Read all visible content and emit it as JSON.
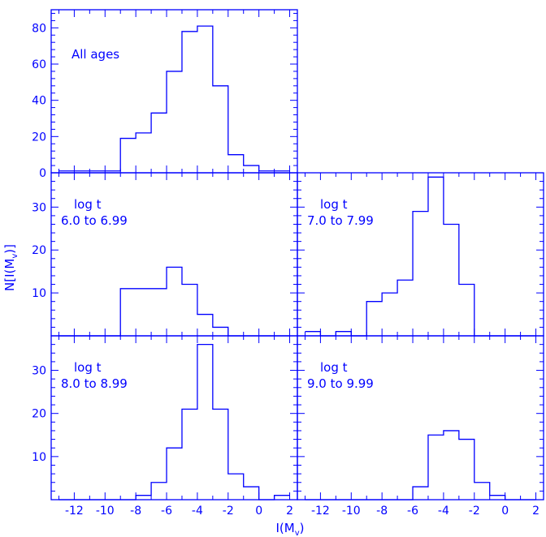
{
  "chart_data": {
    "type": "histogram-panels",
    "xlabel": "I(M",
    "xlabel_sub": "v",
    "xlabel_close": ")",
    "ylabel": "N[I(M",
    "ylabel_sub": "v",
    "ylabel_close": ")]",
    "x_ticks": [
      "-12",
      "-10",
      "-8",
      "-6",
      "-4",
      "-2",
      "0",
      "2"
    ],
    "bin_edges": [
      -13,
      -12,
      -11,
      -10,
      -9,
      -8,
      -7,
      -6,
      -5,
      -4,
      -3,
      -2,
      -1,
      0,
      1,
      2
    ],
    "panels": [
      {
        "id": "all",
        "labels": [
          "All ages"
        ],
        "ylim": [
          0,
          90
        ],
        "y_ticks": [
          0,
          20,
          40,
          60,
          80
        ],
        "counts": [
          1,
          1,
          1,
          1,
          19,
          22,
          33,
          56,
          78,
          81,
          48,
          10,
          4,
          1,
          1
        ]
      },
      {
        "id": "age6",
        "labels": [
          "log t",
          "6.0 to 6.99"
        ],
        "ylim": [
          0,
          38
        ],
        "y_ticks": [
          10,
          20,
          30
        ],
        "counts": [
          0,
          0,
          0,
          0,
          11,
          11,
          11,
          16,
          12,
          5,
          2,
          0,
          0,
          0,
          0
        ]
      },
      {
        "id": "age7",
        "labels": [
          "log t",
          "7.0 to 7.99"
        ],
        "ylim": [
          0,
          38
        ],
        "y_ticks": [
          10,
          20,
          30
        ],
        "counts": [
          1,
          0,
          1,
          0,
          8,
          10,
          13,
          29,
          37,
          26,
          12,
          0,
          0,
          0,
          0
        ]
      },
      {
        "id": "age8",
        "labels": [
          "log t",
          "8.0 to 8.99"
        ],
        "ylim": [
          0,
          38
        ],
        "y_ticks": [
          10,
          20,
          30
        ],
        "counts": [
          0,
          0,
          0,
          0,
          0,
          1,
          4,
          12,
          21,
          36,
          21,
          6,
          3,
          0,
          1
        ]
      },
      {
        "id": "age9",
        "labels": [
          "log t",
          "9.0 to 9.99"
        ],
        "ylim": [
          0,
          38
        ],
        "y_ticks": [
          10,
          20,
          30
        ],
        "counts": [
          0,
          0,
          0,
          0,
          0,
          0,
          0,
          3,
          15,
          16,
          14,
          4,
          1,
          0,
          0
        ]
      }
    ]
  }
}
